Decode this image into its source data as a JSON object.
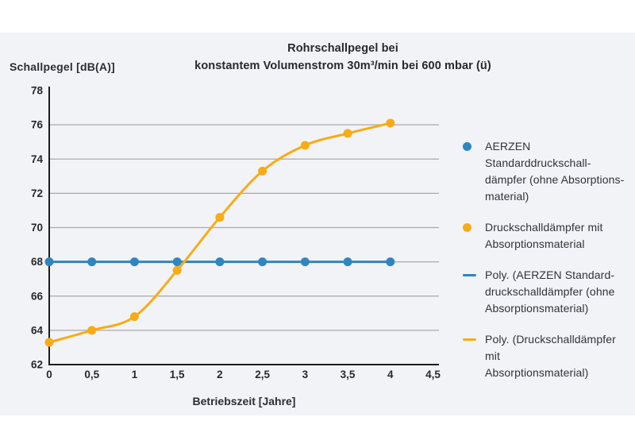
{
  "colors": {
    "panel_bg": "#f2f3f6",
    "grid": "#a8a9ab",
    "axis": "#1d1d1b",
    "text": "#26292e",
    "series_blue": "#2e86c0",
    "series_yellow": "#f7ac15"
  },
  "title": {
    "line1": "Rohrschallpegel bei",
    "line2": "konstantem Volumenstrom 30m³/min bei 600 mbar (ü)"
  },
  "y_axis_title": "Schallpegel [dB(A)]",
  "x_axis_title": "Betriebszeit [Jahre]",
  "chart_data": {
    "type": "line",
    "x": [
      0,
      0.5,
      1,
      1.5,
      2,
      2.5,
      3,
      3.5,
      4
    ],
    "x_tick_values": [
      0,
      0.5,
      1,
      1.5,
      2,
      2.5,
      3,
      3.5,
      4,
      4.5
    ],
    "x_tick_labels": [
      "0",
      "0,5",
      "1",
      "1,5",
      "2",
      "2,5",
      "3",
      "3,5",
      "4",
      "4,5"
    ],
    "xlabel": "Betriebszeit [Jahre]",
    "ylabel": "Schallpegel [dB(A)]",
    "ylim": [
      62,
      78
    ],
    "y_tick_values": [
      62,
      64,
      66,
      68,
      70,
      72,
      74,
      76,
      78
    ],
    "y_tick_labels": [
      "62",
      "64",
      "66",
      "68",
      "70",
      "72",
      "74",
      "76",
      "78"
    ],
    "grid": "horizontal",
    "legend_position": "right",
    "title": "Rohrschallpegel bei konstantem Volumenstrom 30m³/min bei 600 mbar (ü)",
    "series": [
      {
        "name": "AERZEN Standarddruckschalldämpfer (ohne Absorptionsmaterial)",
        "color": "#2e86c0",
        "marker": "circle",
        "smooth": false,
        "values": [
          68,
          68,
          68,
          68,
          68,
          68,
          68,
          68,
          68
        ]
      },
      {
        "name": "Druckschalldämpfer mit Absorptionsmaterial",
        "color": "#f7ac15",
        "marker": "circle",
        "smooth": true,
        "values": [
          63.3,
          64,
          64.8,
          67.5,
          70.6,
          73.3,
          74.8,
          75.5,
          76.1
        ]
      }
    ]
  },
  "legend": {
    "entries": [
      {
        "marker": "dot",
        "color": "#2e86c0",
        "lines": [
          "AERZEN Standarddruckschall-",
          "dämpfer (ohne Absorptions-",
          "material)"
        ]
      },
      {
        "marker": "dot",
        "color": "#f7ac15",
        "lines": [
          "Druckschalldämpfer mit",
          "Absorptionsmaterial"
        ]
      },
      {
        "marker": "line",
        "color": "#2e86c0",
        "lines": [
          "Poly. (AERZEN Standard-",
          "druckschalldämpfer (ohne",
          "Absorptionsmaterial)"
        ]
      },
      {
        "marker": "line",
        "color": "#f7ac15",
        "lines": [
          "Poly. (Druckschalldämpfer mit",
          "Absorptionsmaterial)"
        ]
      }
    ]
  }
}
